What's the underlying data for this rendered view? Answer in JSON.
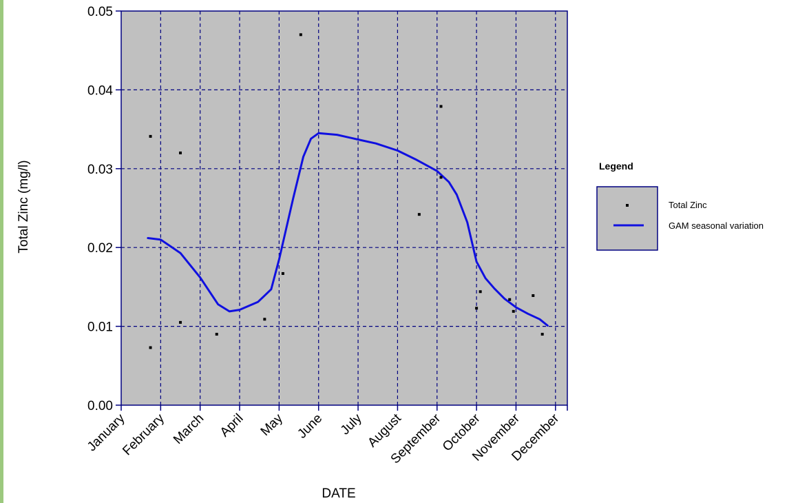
{
  "chart_data": {
    "type": "scatter",
    "xlabel": "DATE",
    "ylabel": "Total Zinc (mg/l)",
    "x_categories": [
      "January",
      "February",
      "March",
      "April",
      "May",
      "June",
      "July",
      "August",
      "September",
      "October",
      "November",
      "December"
    ],
    "x_range_months": [
      0,
      11.3
    ],
    "ylim": [
      0,
      0.05
    ],
    "y_ticks": [
      "0.00",
      "0.01",
      "0.02",
      "0.03",
      "0.04",
      "0.05"
    ],
    "grid": true,
    "legend_position": "right",
    "legend_title": "Legend",
    "series": [
      {
        "name": "Total Zinc",
        "kind": "points",
        "color": "#000000",
        "points": [
          {
            "date": "Jan 24",
            "y": 0.0073
          },
          {
            "date": "Jan 24",
            "y": 0.0341
          },
          {
            "date": "Feb 15",
            "y": 0.032
          },
          {
            "date": "Feb 15",
            "y": 0.0105
          },
          {
            "date": "Mar 14",
            "y": 0.009
          },
          {
            "date": "Apr 20",
            "y": 0.0109
          },
          {
            "date": "May 4",
            "y": 0.0167
          },
          {
            "date": "May 18",
            "y": 0.047
          },
          {
            "date": "Aug 18",
            "y": 0.0242
          },
          {
            "date": "Sep 4",
            "y": 0.0379
          },
          {
            "date": "Sep 4",
            "y": 0.0289
          },
          {
            "date": "Oct 1",
            "y": 0.0123
          },
          {
            "date": "Oct 4",
            "y": 0.0144
          },
          {
            "date": "Oct 27",
            "y": 0.0134
          },
          {
            "date": "Oct 30",
            "y": 0.0119
          },
          {
            "date": "Nov 14",
            "y": 0.0139
          },
          {
            "date": "Nov 21",
            "y": 0.009
          }
        ]
      },
      {
        "name": "GAM seasonal variation",
        "kind": "line",
        "color": "#1010e0",
        "points": [
          {
            "date": "Jan 22",
            "y": 0.0212
          },
          {
            "date": "Feb 1",
            "y": 0.021
          },
          {
            "date": "Feb 15",
            "y": 0.0193
          },
          {
            "date": "Mar 1",
            "y": 0.0162
          },
          {
            "date": "Mar 15",
            "y": 0.0128
          },
          {
            "date": "Mar 24",
            "y": 0.0119
          },
          {
            "date": "Apr 1",
            "y": 0.0121
          },
          {
            "date": "Apr 15",
            "y": 0.0131
          },
          {
            "date": "Apr 25",
            "y": 0.0147
          },
          {
            "date": "May 1",
            "y": 0.0185
          },
          {
            "date": "May 12",
            "y": 0.0262
          },
          {
            "date": "May 20",
            "y": 0.0315
          },
          {
            "date": "May 26",
            "y": 0.0338
          },
          {
            "date": "Jun 1",
            "y": 0.0345
          },
          {
            "date": "Jun 15",
            "y": 0.0343
          },
          {
            "date": "Jul 1",
            "y": 0.0337
          },
          {
            "date": "Jul 15",
            "y": 0.0332
          },
          {
            "date": "Aug 1",
            "y": 0.0323
          },
          {
            "date": "Aug 15",
            "y": 0.0312
          },
          {
            "date": "Sep 1",
            "y": 0.0297
          },
          {
            "date": "Sep 10",
            "y": 0.0283
          },
          {
            "date": "Sep 16",
            "y": 0.0267
          },
          {
            "date": "Sep 24",
            "y": 0.0232
          },
          {
            "date": "Oct 1",
            "y": 0.0182
          },
          {
            "date": "Oct 8",
            "y": 0.0161
          },
          {
            "date": "Oct 15",
            "y": 0.0148
          },
          {
            "date": "Oct 23",
            "y": 0.0135
          },
          {
            "date": "Nov 1",
            "y": 0.0124
          },
          {
            "date": "Nov 10",
            "y": 0.0116
          },
          {
            "date": "Nov 19",
            "y": 0.0109
          },
          {
            "date": "Nov 25",
            "y": 0.0101
          }
        ]
      }
    ]
  },
  "colors": {
    "plot_background": "#c0c0c0",
    "axis": "#000080",
    "grid": "#000080",
    "frame_accent": "#9cc97e"
  }
}
